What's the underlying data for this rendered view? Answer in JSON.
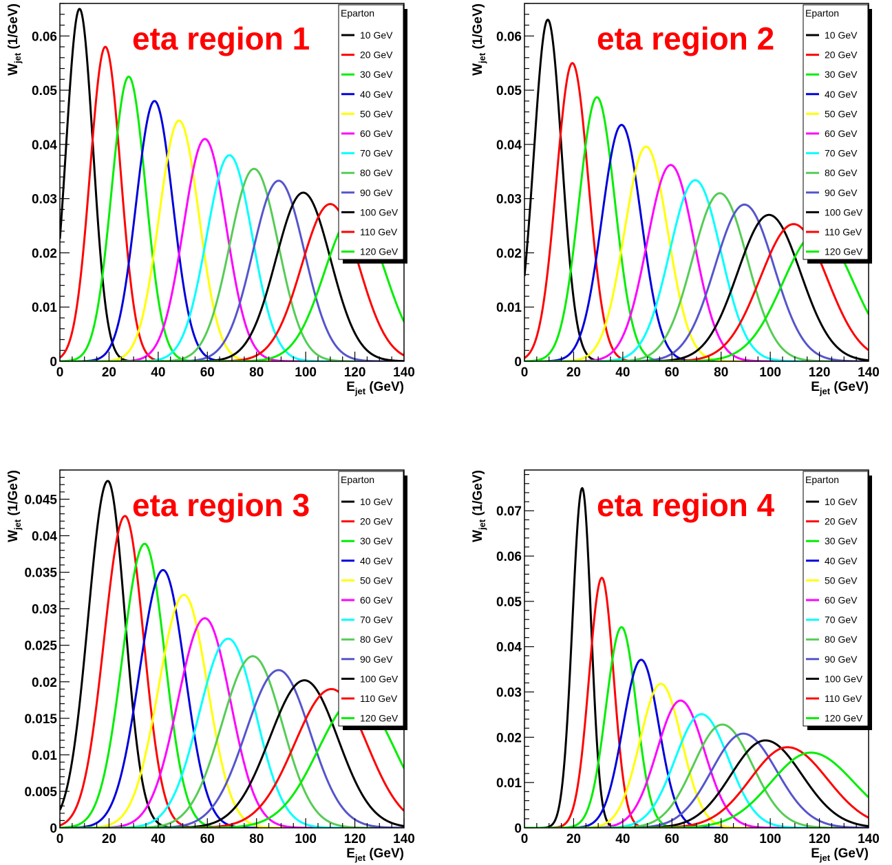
{
  "colors": [
    "#000000",
    "#ff0000",
    "#00ee00",
    "#0000dd",
    "#ffff00",
    "#ff00ff",
    "#00ffff",
    "#55cc55",
    "#5555cc",
    "#000000",
    "#ff0000",
    "#00ee00"
  ],
  "chart_data": [
    {
      "type": "line",
      "title": "eta region 1",
      "xlabel": "E_jet (GeV)",
      "ylabel": "W_jet (1/GeV)",
      "xlim": [
        0,
        140
      ],
      "ylim": [
        0,
        0.066
      ],
      "xticks": [
        "0",
        "20",
        "40",
        "60",
        "80",
        "100",
        "120",
        "140"
      ],
      "xtick_values": [
        0,
        20,
        40,
        60,
        80,
        100,
        120,
        140
      ],
      "yticks": [
        "0",
        "0.01",
        "0.02",
        "0.03",
        "0.04",
        "0.05",
        "0.06"
      ],
      "ytick_values": [
        0,
        0.01,
        0.02,
        0.03,
        0.04,
        0.05,
        0.06
      ],
      "legend_title": "Eparton",
      "legend_position": "top-right",
      "series": [
        {
          "name": "10 GeV",
          "peak_x": 8,
          "peak_y": 0.065,
          "width_left": 5.5,
          "width_right": 5.5
        },
        {
          "name": "20 GeV",
          "peak_x": 18.5,
          "peak_y": 0.058,
          "width_left": 6.2,
          "width_right": 6.2
        },
        {
          "name": "30 GeV",
          "peak_x": 28,
          "peak_y": 0.0525,
          "width_left": 6.9,
          "width_right": 6.9
        },
        {
          "name": "40 GeV",
          "peak_x": 38.5,
          "peak_y": 0.048,
          "width_left": 7.5,
          "width_right": 7.5
        },
        {
          "name": "50 GeV",
          "peak_x": 48.5,
          "peak_y": 0.0444,
          "width_left": 8.1,
          "width_right": 8.1
        },
        {
          "name": "60 GeV",
          "peak_x": 59,
          "peak_y": 0.041,
          "width_left": 8.7,
          "width_right": 8.7
        },
        {
          "name": "70 GeV",
          "peak_x": 69,
          "peak_y": 0.038,
          "width_left": 9.3,
          "width_right": 9.3
        },
        {
          "name": "80 GeV",
          "peak_x": 79,
          "peak_y": 0.0355,
          "width_left": 9.9,
          "width_right": 9.9
        },
        {
          "name": "90 GeV",
          "peak_x": 89,
          "peak_y": 0.0333,
          "width_left": 10.5,
          "width_right": 10.5
        },
        {
          "name": "100 GeV",
          "peak_x": 99,
          "peak_y": 0.0311,
          "width_left": 11.1,
          "width_right": 11.1
        },
        {
          "name": "110 GeV",
          "peak_x": 110,
          "peak_y": 0.029,
          "width_left": 11.7,
          "width_right": 11.7
        },
        {
          "name": "120 GeV",
          "peak_x": 120,
          "peak_y": 0.0273,
          "width_left": 12.3,
          "width_right": 12.3
        }
      ]
    },
    {
      "type": "line",
      "title": "eta region 2",
      "xlabel": "E_jet (GeV)",
      "ylabel": "W_jet (1/GeV)",
      "xlim": [
        0,
        140
      ],
      "ylim": [
        0,
        0.066
      ],
      "xticks": [
        "0",
        "20",
        "40",
        "60",
        "80",
        "100",
        "120",
        "140"
      ],
      "xtick_values": [
        0,
        20,
        40,
        60,
        80,
        100,
        120,
        140
      ],
      "yticks": [
        "0",
        "0.01",
        "0.02",
        "0.03",
        "0.04",
        "0.05",
        "0.06"
      ],
      "ytick_values": [
        0,
        0.01,
        0.02,
        0.03,
        0.04,
        0.05,
        0.06
      ],
      "legend_title": "Eparton",
      "legend_position": "top-right",
      "series": [
        {
          "name": "10 GeV",
          "peak_x": 9.5,
          "peak_y": 0.063,
          "width_left": 5.7,
          "width_right": 5.7
        },
        {
          "name": "20 GeV",
          "peak_x": 19.5,
          "peak_y": 0.055,
          "width_left": 6.5,
          "width_right": 6.5
        },
        {
          "name": "30 GeV",
          "peak_x": 29.5,
          "peak_y": 0.0487,
          "width_left": 7.3,
          "width_right": 7.3
        },
        {
          "name": "40 GeV",
          "peak_x": 39.5,
          "peak_y": 0.0436,
          "width_left": 8.0,
          "width_right": 8.0
        },
        {
          "name": "50 GeV",
          "peak_x": 49.5,
          "peak_y": 0.0396,
          "width_left": 8.8,
          "width_right": 8.8
        },
        {
          "name": "60 GeV",
          "peak_x": 59.5,
          "peak_y": 0.0362,
          "width_left": 9.6,
          "width_right": 9.6
        },
        {
          "name": "70 GeV",
          "peak_x": 69.5,
          "peak_y": 0.0334,
          "width_left": 10.4,
          "width_right": 10.4
        },
        {
          "name": "80 GeV",
          "peak_x": 79.5,
          "peak_y": 0.031,
          "width_left": 11.2,
          "width_right": 11.2
        },
        {
          "name": "90 GeV",
          "peak_x": 89.5,
          "peak_y": 0.0289,
          "width_left": 12.0,
          "width_right": 12.0
        },
        {
          "name": "100 GeV",
          "peak_x": 99.5,
          "peak_y": 0.027,
          "width_left": 12.8,
          "width_right": 12.8
        },
        {
          "name": "110 GeV",
          "peak_x": 109.5,
          "peak_y": 0.0253,
          "width_left": 13.6,
          "width_right": 13.6
        },
        {
          "name": "120 GeV",
          "peak_x": 119.5,
          "peak_y": 0.0239,
          "width_left": 14.4,
          "width_right": 14.4
        }
      ]
    },
    {
      "type": "line",
      "title": "eta region 3",
      "xlabel": "E_jet (GeV)",
      "ylabel": "W_jet (1/GeV)",
      "xlim": [
        0,
        140
      ],
      "ylim": [
        0,
        0.049
      ],
      "xticks": [
        "0",
        "20",
        "40",
        "60",
        "80",
        "100",
        "120",
        "140"
      ],
      "xtick_values": [
        0,
        20,
        40,
        60,
        80,
        100,
        120,
        140
      ],
      "yticks": [
        "0",
        "0.005",
        "0.01",
        "0.015",
        "0.02",
        "0.025",
        "0.03",
        "0.035",
        "0.04",
        "0.045"
      ],
      "ytick_values": [
        0,
        0.005,
        0.01,
        0.015,
        0.02,
        0.025,
        0.03,
        0.035,
        0.04,
        0.045
      ],
      "legend_title": "Eparton",
      "legend_position": "top-right",
      "series": [
        {
          "name": "10 GeV",
          "peak_x": 19.5,
          "peak_y": 0.0475,
          "width_left": 8.0,
          "width_right": 7.0
        },
        {
          "name": "20 GeV",
          "peak_x": 26.5,
          "peak_y": 0.0427,
          "width_left": 8.5,
          "width_right": 7.6
        },
        {
          "name": "30 GeV",
          "peak_x": 34.5,
          "peak_y": 0.0389,
          "width_left": 9.0,
          "width_right": 8.2
        },
        {
          "name": "40 GeV",
          "peak_x": 42,
          "peak_y": 0.0353,
          "width_left": 9.6,
          "width_right": 8.9
        },
        {
          "name": "50 GeV",
          "peak_x": 50.5,
          "peak_y": 0.0319,
          "width_left": 10.3,
          "width_right": 9.6
        },
        {
          "name": "60 GeV",
          "peak_x": 59,
          "peak_y": 0.0287,
          "width_left": 11.0,
          "width_right": 10.4
        },
        {
          "name": "70 GeV",
          "peak_x": 68.5,
          "peak_y": 0.0259,
          "width_left": 11.8,
          "width_right": 11.2
        },
        {
          "name": "80 GeV",
          "peak_x": 78.5,
          "peak_y": 0.0235,
          "width_left": 12.6,
          "width_right": 12.0
        },
        {
          "name": "90 GeV",
          "peak_x": 89,
          "peak_y": 0.0216,
          "width_left": 13.4,
          "width_right": 12.8
        },
        {
          "name": "100 GeV",
          "peak_x": 99.5,
          "peak_y": 0.0202,
          "width_left": 14.2,
          "width_right": 13.6
        },
        {
          "name": "110 GeV",
          "peak_x": 110.5,
          "peak_y": 0.019,
          "width_left": 15.0,
          "width_right": 14.4
        },
        {
          "name": "120 GeV",
          "peak_x": 121,
          "peak_y": 0.0178,
          "width_left": 15.8,
          "width_right": 15.2
        }
      ]
    },
    {
      "type": "line",
      "title": "eta region 4",
      "xlabel": "E_jet (GeV)",
      "ylabel": "W_jet (1/GeV)",
      "xlim": [
        0,
        140
      ],
      "ylim": [
        0,
        0.079
      ],
      "xticks": [
        "0",
        "20",
        "40",
        "60",
        "80",
        "100",
        "120",
        "140"
      ],
      "xtick_values": [
        0,
        20,
        40,
        60,
        80,
        100,
        120,
        140
      ],
      "yticks": [
        "0",
        "0.01",
        "0.02",
        "0.03",
        "0.04",
        "0.05",
        "0.06",
        "0.07"
      ],
      "ytick_values": [
        0,
        0.01,
        0.02,
        0.03,
        0.04,
        0.05,
        0.06,
        0.07
      ],
      "legend_title": "Eparton",
      "legend_position": "top-right",
      "series": [
        {
          "name": "10 GeV",
          "peak_x": 23.5,
          "peak_y": 0.075,
          "width_left": 4.0,
          "width_right": 3.6
        },
        {
          "name": "20 GeV",
          "peak_x": 31.5,
          "peak_y": 0.0552,
          "width_left": 5.2,
          "width_right": 4.8
        },
        {
          "name": "30 GeV",
          "peak_x": 39.5,
          "peak_y": 0.0443,
          "width_left": 6.3,
          "width_right": 6.0
        },
        {
          "name": "40 GeV",
          "peak_x": 47.5,
          "peak_y": 0.0371,
          "width_left": 7.4,
          "width_right": 7.2
        },
        {
          "name": "50 GeV",
          "peak_x": 55.5,
          "peak_y": 0.0318,
          "width_left": 8.5,
          "width_right": 8.5
        },
        {
          "name": "60 GeV",
          "peak_x": 63.5,
          "peak_y": 0.0281,
          "width_left": 9.6,
          "width_right": 9.7
        },
        {
          "name": "70 GeV",
          "peak_x": 72,
          "peak_y": 0.0251,
          "width_left": 10.7,
          "width_right": 11.0
        },
        {
          "name": "80 GeV",
          "peak_x": 80.5,
          "peak_y": 0.0228,
          "width_left": 11.8,
          "width_right": 12.3
        },
        {
          "name": "90 GeV",
          "peak_x": 89,
          "peak_y": 0.0208,
          "width_left": 12.9,
          "width_right": 13.6
        },
        {
          "name": "100 GeV",
          "peak_x": 98,
          "peak_y": 0.0193,
          "width_left": 14.0,
          "width_right": 14.9
        },
        {
          "name": "110 GeV",
          "peak_x": 107,
          "peak_y": 0.0178,
          "width_left": 15.1,
          "width_right": 16.2
        },
        {
          "name": "120 GeV",
          "peak_x": 116.5,
          "peak_y": 0.0166,
          "width_left": 16.2,
          "width_right": 17.5
        }
      ]
    }
  ]
}
